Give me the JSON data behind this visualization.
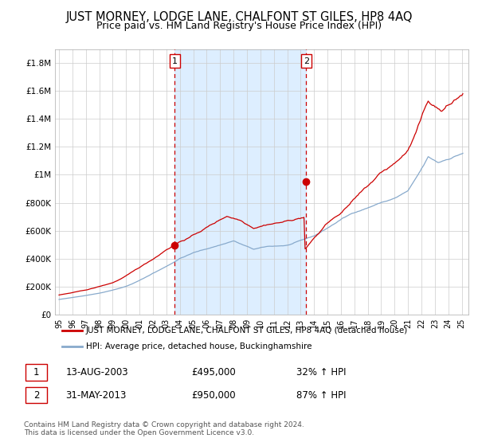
{
  "title": "JUST MORNEY, LODGE LANE, CHALFONT ST GILES, HP8 4AQ",
  "subtitle": "Price paid vs. HM Land Registry's House Price Index (HPI)",
  "title_fontsize": 10.5,
  "subtitle_fontsize": 9,
  "ylabel_ticks": [
    "£0",
    "£200K",
    "£400K",
    "£600K",
    "£800K",
    "£1M",
    "£1.2M",
    "£1.4M",
    "£1.6M",
    "£1.8M"
  ],
  "ytick_values": [
    0,
    200000,
    400000,
    600000,
    800000,
    1000000,
    1200000,
    1400000,
    1600000,
    1800000
  ],
  "ylim": [
    0,
    1900000
  ],
  "xlim_start": 1994.7,
  "xlim_end": 2025.5,
  "purchase1_x": 2003.617,
  "purchase1_y": 495000,
  "purchase2_x": 2013.415,
  "purchase2_y": 950000,
  "line_color_red": "#cc0000",
  "line_color_blue": "#88aacc",
  "shade_color": "#ddeeff",
  "vline_color": "#cc0000",
  "grid_color": "#cccccc",
  "background_color": "#ffffff",
  "legend_line1": "JUST MORNEY, LODGE LANE, CHALFONT ST GILES, HP8 4AQ (detached house)",
  "legend_line2": "HPI: Average price, detached house, Buckinghamshire",
  "table_row1": [
    "1",
    "13-AUG-2003",
    "£495,000",
    "32% ↑ HPI"
  ],
  "table_row2": [
    "2",
    "31-MAY-2013",
    "£950,000",
    "87% ↑ HPI"
  ],
  "footer": "Contains HM Land Registry data © Crown copyright and database right 2024.\nThis data is licensed under the Open Government Licence v3.0."
}
